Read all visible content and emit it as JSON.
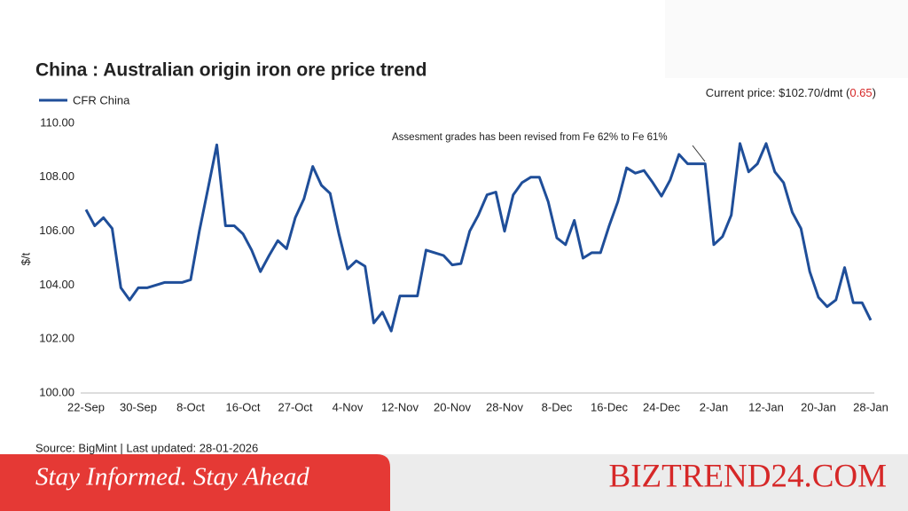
{
  "chart_data": {
    "type": "line",
    "title": "China : Australian origin iron ore price trend",
    "y_label": "$/t",
    "current_price": {
      "text": "Current price: $102.70/dmt (",
      "change": "0.65",
      "close": ")"
    },
    "annotation": "Assesment grades has been revised from Fe 62% to Fe 61%",
    "source": "Source: BigMint | Last updated: 28-01-2026",
    "categories": [
      "22-Sep",
      null,
      null,
      null,
      null,
      null,
      "30-Sep",
      null,
      null,
      null,
      null,
      null,
      "8-Oct",
      null,
      null,
      null,
      null,
      null,
      "16-Oct",
      null,
      null,
      null,
      null,
      null,
      "27-Oct",
      null,
      null,
      null,
      null,
      null,
      "4-Nov",
      null,
      null,
      null,
      null,
      null,
      "12-Nov",
      null,
      null,
      null,
      null,
      null,
      "20-Nov",
      null,
      null,
      null,
      null,
      null,
      "28-Nov",
      null,
      null,
      null,
      null,
      null,
      "8-Dec",
      null,
      null,
      null,
      null,
      null,
      "16-Dec",
      null,
      null,
      null,
      null,
      null,
      "24-Dec",
      null,
      null,
      null,
      null,
      null,
      "2-Jan",
      null,
      null,
      null,
      null,
      null,
      "12-Jan",
      null,
      null,
      null,
      null,
      null,
      "20-Jan",
      null,
      null,
      null,
      null,
      null,
      "28-Jan"
    ],
    "series": [
      {
        "name": "CFR China",
        "color": "#1f4e99",
        "values": [
          106.8,
          106.2,
          106.5,
          106.1,
          103.9,
          103.45,
          103.9,
          103.9,
          104.0,
          104.1,
          104.1,
          104.1,
          104.2,
          106.0,
          107.6,
          109.2,
          106.2,
          106.2,
          105.9,
          105.3,
          104.5,
          105.1,
          105.65,
          105.35,
          106.5,
          107.2,
          108.4,
          107.7,
          107.4,
          105.9,
          104.6,
          104.9,
          104.7,
          102.6,
          103.0,
          102.3,
          103.6,
          103.6,
          103.6,
          105.3,
          105.2,
          105.1,
          104.75,
          104.8,
          106.0,
          106.6,
          107.35,
          107.45,
          106.0,
          107.35,
          107.8,
          108.0,
          108.0,
          107.1,
          105.75,
          105.5,
          106.4,
          105.0,
          105.2,
          105.2,
          106.2,
          107.1,
          108.35,
          108.15,
          108.25,
          107.8,
          107.3,
          107.9,
          108.85,
          108.5,
          108.5,
          108.5,
          105.5,
          105.8,
          106.6,
          109.25,
          108.2,
          108.5,
          109.25,
          108.2,
          107.8,
          106.7,
          106.1,
          104.5,
          103.55,
          103.2,
          103.45,
          104.65,
          103.35,
          103.35,
          102.7
        ]
      }
    ],
    "ylim": [
      100,
      110
    ],
    "yticks": [
      {
        "value": 100,
        "label": "100.00"
      },
      {
        "value": 102,
        "label": "102.00"
      },
      {
        "value": 104,
        "label": "104.00"
      },
      {
        "value": 106,
        "label": "106.00"
      },
      {
        "value": 108,
        "label": "108.00"
      },
      {
        "value": 110,
        "label": "110.00"
      }
    ],
    "grid": false
  },
  "banner": {
    "tagline": "Stay Informed. Stay Ahead",
    "brand": "BIZTREND24.COM"
  }
}
